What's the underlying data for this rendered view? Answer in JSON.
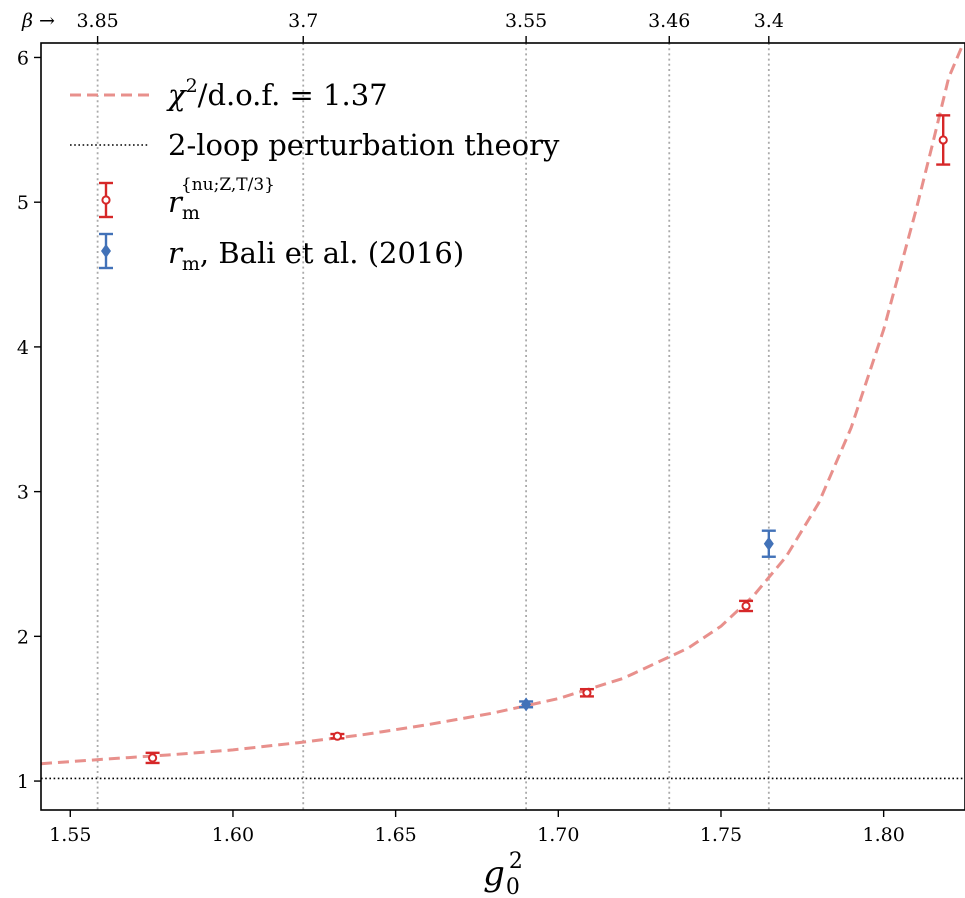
{
  "chart_data": {
    "type": "scatter",
    "title": "",
    "xlabel": "g_0^2",
    "ylabel": "",
    "xlim": [
      1.541,
      1.825
    ],
    "ylim": [
      0.8,
      6.1
    ],
    "x_ticks": [
      "1.55",
      "1.60",
      "1.65",
      "1.70",
      "1.75",
      "1.80"
    ],
    "x_tick_values": [
      1.55,
      1.6,
      1.65,
      1.7,
      1.75,
      1.8
    ],
    "y_ticks": [
      "1",
      "2",
      "3",
      "4",
      "5",
      "6"
    ],
    "y_tick_values": [
      1,
      2,
      3,
      4,
      5,
      6
    ],
    "grid": false,
    "legend_position": "top-left",
    "top_axis": {
      "prefix": "β →",
      "labels": [
        "3.85",
        "3.7",
        "3.55",
        "3.46",
        "3.4"
      ],
      "g0sq_positions": [
        1.5584,
        1.6216,
        1.6901,
        1.7341,
        1.7647
      ]
    },
    "series": [
      {
        "name": "χ²/d.o.f. = 1.37",
        "kind": "fit-curve",
        "style": "dashed",
        "color": "#e8908c",
        "x": [
          1.541,
          1.56,
          1.58,
          1.6,
          1.62,
          1.64,
          1.66,
          1.68,
          1.7,
          1.72,
          1.74,
          1.75,
          1.76,
          1.77,
          1.78,
          1.79,
          1.8,
          1.81,
          1.815,
          1.82,
          1.8245
        ],
        "y": [
          1.12,
          1.15,
          1.18,
          1.215,
          1.265,
          1.32,
          1.39,
          1.47,
          1.57,
          1.71,
          1.92,
          2.07,
          2.28,
          2.55,
          2.92,
          3.44,
          4.12,
          4.95,
          5.4,
          5.86,
          6.1
        ]
      },
      {
        "name": "2-loop perturbation theory",
        "kind": "reference-line",
        "style": "dotted",
        "color": "#000000",
        "y": 1.018
      },
      {
        "name": "r_m^{nu;Z,T/3}",
        "kind": "points",
        "marker": "open-circle",
        "color": "#d62728",
        "x": [
          1.5753,
          1.6321,
          1.7088,
          1.7577,
          1.8183
        ],
        "y": [
          1.16,
          1.31,
          1.61,
          2.21,
          5.43
        ],
        "yerr": [
          0.035,
          0.015,
          0.025,
          0.035,
          0.17
        ]
      },
      {
        "name": "r_m, Bali et al. (2016)",
        "kind": "points",
        "marker": "filled-diamond",
        "color": "#4272b8",
        "x": [
          1.6901,
          1.7647
        ],
        "y": [
          1.53,
          2.64
        ],
        "yerr": [
          0.02,
          0.09
        ]
      }
    ]
  },
  "legend": {
    "fit_prefix": "χ",
    "fit_sup": "2",
    "fit_suffix": "/d.o.f. = 1.37",
    "pt_label": "2-loop perturbation theory",
    "rm_sym": "r",
    "rm_sub": "m",
    "rm_sup": "{nu;Z,T/3}",
    "bali_sym": "r",
    "bali_sub": "m",
    "bali_suffix": ", Bali et al. (2016)"
  },
  "axis_titles": {
    "x_sym": "g",
    "x_sub": "0",
    "x_sup": "2"
  }
}
